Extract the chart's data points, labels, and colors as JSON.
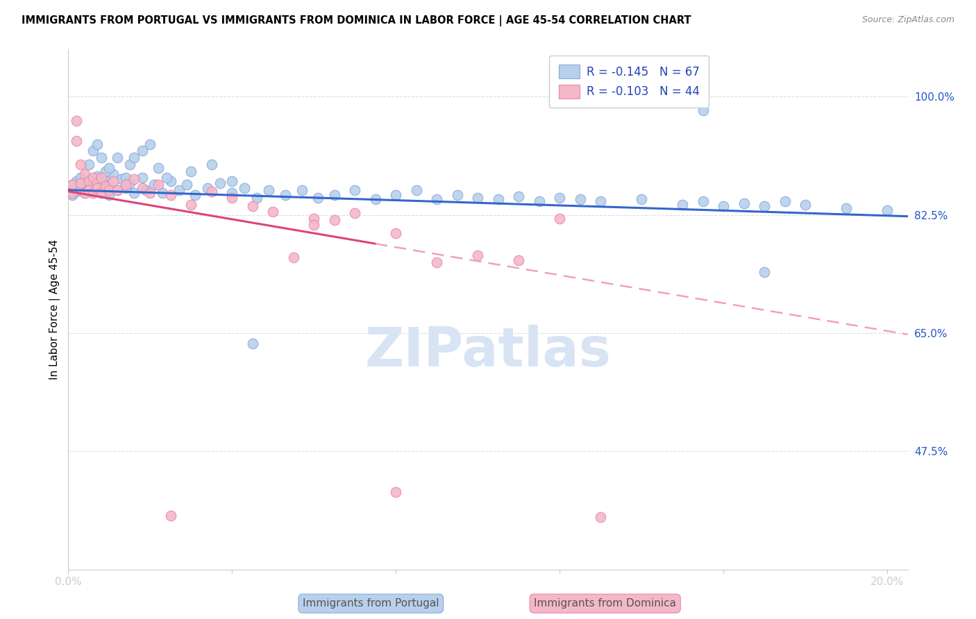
{
  "title": "IMMIGRANTS FROM PORTUGAL VS IMMIGRANTS FROM DOMINICA IN LABOR FORCE | AGE 45-54 CORRELATION CHART",
  "source": "Source: ZipAtlas.com",
  "ylabel": "In Labor Force | Age 45-54",
  "xlim": [
    0.0,
    0.205
  ],
  "ylim": [
    0.3,
    1.07
  ],
  "ytick_labels_right": [
    "100.0%",
    "82.5%",
    "65.0%",
    "47.5%"
  ],
  "ytick_vals_right": [
    1.0,
    0.825,
    0.65,
    0.475
  ],
  "legend_entries": [
    {
      "label": "R = -0.145   N = 67",
      "color": "#b8d0ec"
    },
    {
      "label": "R = -0.103   N = 44",
      "color": "#f4b8c8"
    }
  ],
  "legend_text_color": "#2244bb",
  "portugal_color": "#b8d0ec",
  "portugal_edge_color": "#88aad8",
  "dominica_color": "#f4b8c8",
  "dominica_edge_color": "#e888aa",
  "trend_portugal_color": "#3366cc",
  "trend_dominica_solid_color": "#dd4477",
  "trend_dominica_dash_color": "#f0a0c0",
  "watermark": "ZIPatlas",
  "watermark_color": "#d8e4f4",
  "grid_color": "#dddddd",
  "trend_portugal_y0": 0.862,
  "trend_portugal_y1": 0.823,
  "trend_dominica_y0": 0.86,
  "trend_dominica_y1": 0.648,
  "trend_dominica_solid_x_end": 0.075,
  "trend_dominica_dash_x_start": 0.075,
  "trend_dominica_dash_x_end": 0.205,
  "portugal_scatter_x": [
    0.001,
    0.001,
    0.002,
    0.002,
    0.003,
    0.003,
    0.004,
    0.004,
    0.005,
    0.005,
    0.006,
    0.006,
    0.007,
    0.007,
    0.008,
    0.008,
    0.009,
    0.009,
    0.01,
    0.01,
    0.011,
    0.012,
    0.013,
    0.014,
    0.015,
    0.016,
    0.018,
    0.019,
    0.021,
    0.023,
    0.025,
    0.027,
    0.029,
    0.031,
    0.034,
    0.037,
    0.04,
    0.043,
    0.046,
    0.049,
    0.053,
    0.057,
    0.061,
    0.065,
    0.07,
    0.075,
    0.08,
    0.085,
    0.09,
    0.095,
    0.1,
    0.105,
    0.11,
    0.115,
    0.12,
    0.125,
    0.13,
    0.14,
    0.15,
    0.155,
    0.16,
    0.165,
    0.17,
    0.175,
    0.18,
    0.19,
    0.2
  ],
  "portugal_scatter_y": [
    0.855,
    0.87,
    0.86,
    0.875,
    0.862,
    0.88,
    0.858,
    0.872,
    0.865,
    0.878,
    0.86,
    0.875,
    0.868,
    0.882,
    0.87,
    0.858,
    0.864,
    0.876,
    0.87,
    0.855,
    0.885,
    0.862,
    0.878,
    0.865,
    0.872,
    0.858,
    0.88,
    0.862,
    0.87,
    0.858,
    0.875,
    0.862,
    0.87,
    0.855,
    0.865,
    0.872,
    0.858,
    0.865,
    0.85,
    0.862,
    0.855,
    0.862,
    0.85,
    0.855,
    0.862,
    0.848,
    0.855,
    0.862,
    0.848,
    0.855,
    0.85,
    0.848,
    0.852,
    0.845,
    0.85,
    0.848,
    0.845,
    0.848,
    0.84,
    0.845,
    0.838,
    0.842,
    0.838,
    0.845,
    0.84,
    0.835,
    0.832
  ],
  "portugal_scatter_y_outliers": [
    0.98,
    0.9,
    0.92,
    0.93,
    0.91,
    0.89,
    0.895,
    0.91,
    0.88,
    0.9,
    0.91,
    0.92,
    0.93,
    0.895,
    0.88,
    0.89,
    0.9,
    0.875,
    0.635,
    0.74
  ],
  "portugal_scatter_x_outliers": [
    0.155,
    0.005,
    0.006,
    0.007,
    0.008,
    0.009,
    0.01,
    0.012,
    0.014,
    0.015,
    0.016,
    0.018,
    0.02,
    0.022,
    0.024,
    0.03,
    0.035,
    0.04,
    0.045,
    0.17
  ],
  "dominica_scatter_x": [
    0.001,
    0.001,
    0.002,
    0.002,
    0.003,
    0.003,
    0.004,
    0.004,
    0.005,
    0.005,
    0.006,
    0.006,
    0.007,
    0.007,
    0.008,
    0.008,
    0.009,
    0.01,
    0.011,
    0.012,
    0.014,
    0.016,
    0.018,
    0.02,
    0.022,
    0.025,
    0.03,
    0.035,
    0.04,
    0.045,
    0.05,
    0.055,
    0.06,
    0.065,
    0.07,
    0.08,
    0.09,
    0.1,
    0.11,
    0.12,
    0.025,
    0.06,
    0.08,
    0.13
  ],
  "dominica_scatter_y": [
    0.858,
    0.87,
    0.965,
    0.935,
    0.9,
    0.872,
    0.885,
    0.858,
    0.875,
    0.862,
    0.88,
    0.858,
    0.872,
    0.865,
    0.88,
    0.858,
    0.868,
    0.862,
    0.875,
    0.862,
    0.87,
    0.878,
    0.865,
    0.858,
    0.87,
    0.855,
    0.84,
    0.86,
    0.85,
    0.838,
    0.83,
    0.762,
    0.82,
    0.818,
    0.828,
    0.798,
    0.755,
    0.765,
    0.758,
    0.82,
    0.38,
    0.81,
    0.415,
    0.378
  ]
}
